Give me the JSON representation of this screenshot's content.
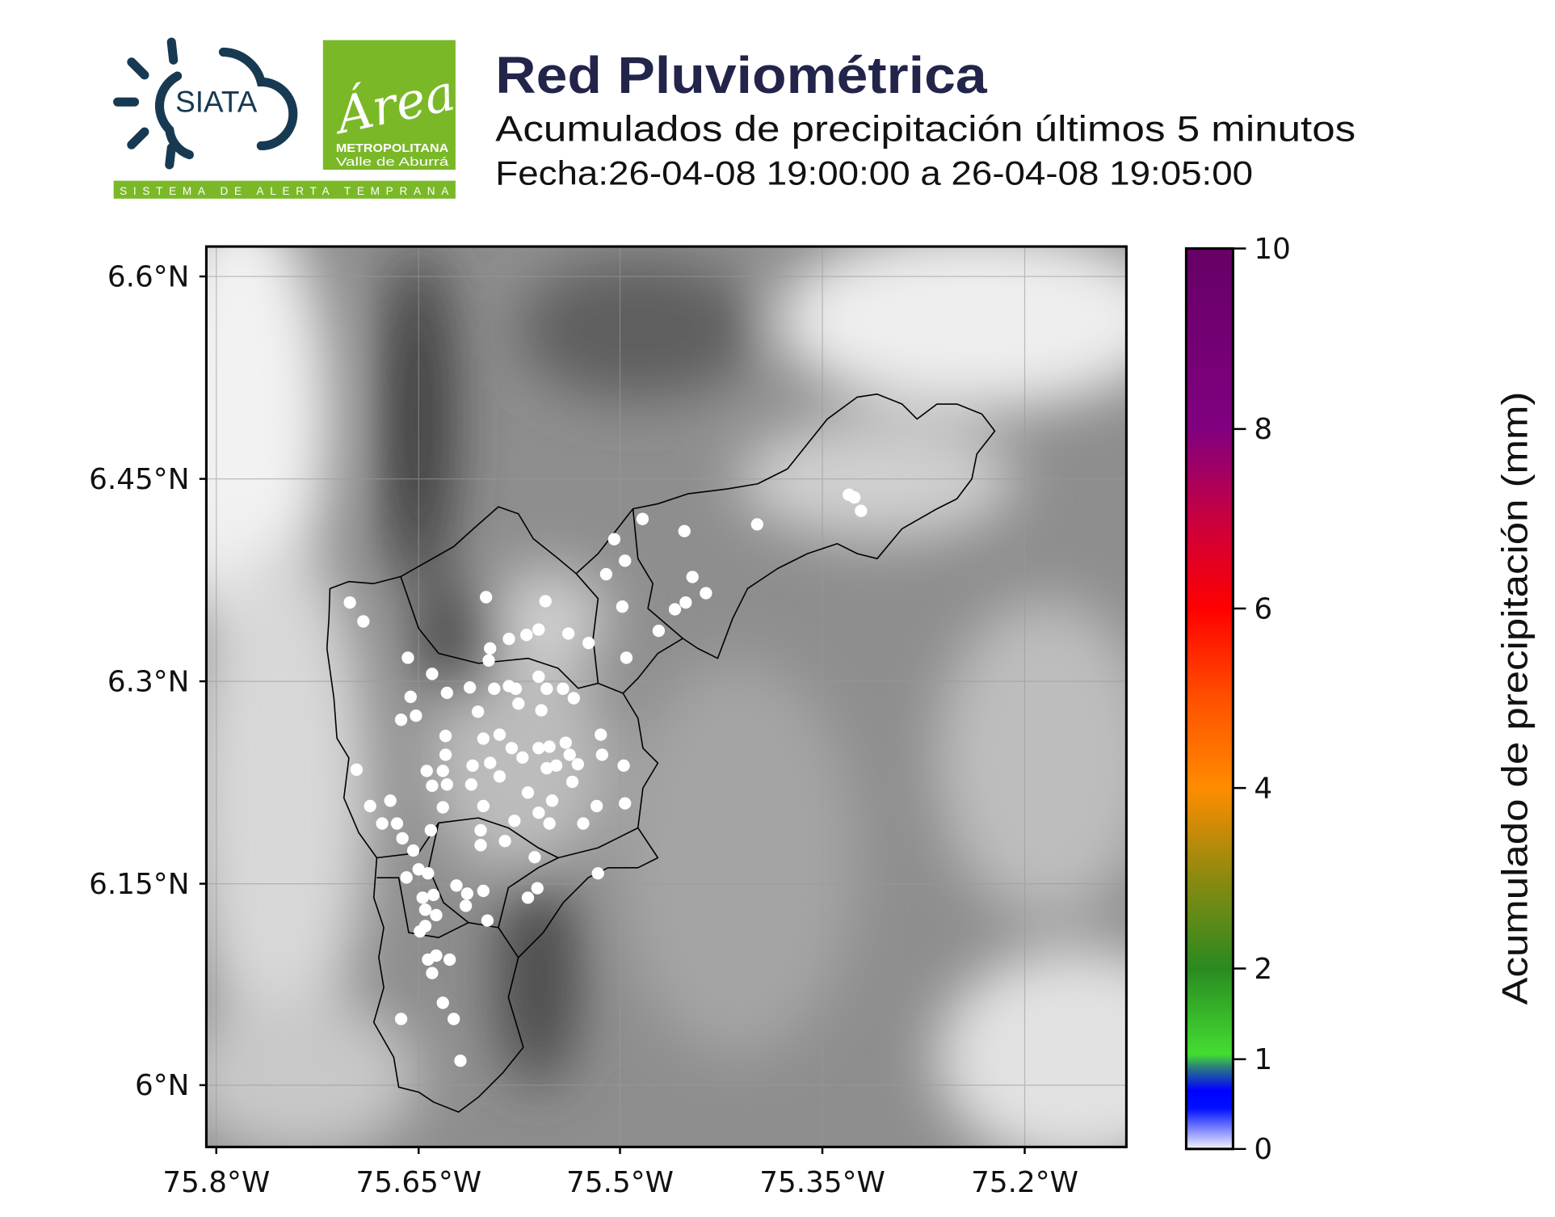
{
  "header": {
    "title": "Red Pluviométrica",
    "subtitle": "Acumulados de precipitación últimos 5 minutos",
    "date_range": "Fecha:26-04-08 19:00:00 a 26-04-08 19:05:00",
    "title_color": "#22244a"
  },
  "logos": {
    "siata": "SIATA",
    "siata_tagline": "SISTEMA DE ALERTA TEMPRANA",
    "area_script": "Área",
    "area_line1": "METROPOLITANA",
    "area_line2": "Valle de Aburrá",
    "siata_color": "#173a52",
    "area_color": "#7ab828"
  },
  "map": {
    "lat_ticks": [
      "6.6°N",
      "6.45°N",
      "6.3°N",
      "6.15°N",
      "6°N"
    ],
    "lon_ticks": [
      "75.8°W",
      "75.65°W",
      "75.5°W",
      "75.35°W",
      "75.2°W"
    ],
    "extent": {
      "lon": [
        -75.808,
        -75.124
      ],
      "lat": [
        5.954,
        6.622
      ]
    },
    "basemap": "grayscale elevation relief",
    "station_color": "#ffffff",
    "stations": [
      [
        -75.701,
        6.358
      ],
      [
        -75.691,
        6.344
      ],
      [
        -75.6,
        6.362
      ],
      [
        -75.556,
        6.359
      ],
      [
        -75.505,
        6.405
      ],
      [
        -75.484,
        6.42
      ],
      [
        -75.453,
        6.411
      ],
      [
        -75.399,
        6.416
      ],
      [
        -75.331,
        6.438
      ],
      [
        -75.327,
        6.436
      ],
      [
        -75.322,
        6.426
      ],
      [
        -75.511,
        6.379
      ],
      [
        -75.497,
        6.389
      ],
      [
        -75.499,
        6.355
      ],
      [
        -75.447,
        6.377
      ],
      [
        -75.437,
        6.365
      ],
      [
        -75.452,
        6.358
      ],
      [
        -75.46,
        6.353
      ],
      [
        -75.472,
        6.337
      ],
      [
        -75.496,
        6.317
      ],
      [
        -75.524,
        6.328
      ],
      [
        -75.539,
        6.335
      ],
      [
        -75.561,
        6.338
      ],
      [
        -75.57,
        6.334
      ],
      [
        -75.583,
        6.331
      ],
      [
        -75.597,
        6.324
      ],
      [
        -75.598,
        6.315
      ],
      [
        -75.658,
        6.317
      ],
      [
        -75.64,
        6.305
      ],
      [
        -75.629,
        6.291
      ],
      [
        -75.612,
        6.295
      ],
      [
        -75.594,
        6.294
      ],
      [
        -75.583,
        6.296
      ],
      [
        -75.578,
        6.294
      ],
      [
        -75.561,
        6.303
      ],
      [
        -75.555,
        6.294
      ],
      [
        -75.543,
        6.294
      ],
      [
        -75.535,
        6.287
      ],
      [
        -75.656,
        6.288
      ],
      [
        -75.652,
        6.274
      ],
      [
        -75.663,
        6.271
      ],
      [
        -75.606,
        6.277
      ],
      [
        -75.576,
        6.283
      ],
      [
        -75.559,
        6.278
      ],
      [
        -75.63,
        6.259
      ],
      [
        -75.602,
        6.257
      ],
      [
        -75.59,
        6.26
      ],
      [
        -75.581,
        6.25
      ],
      [
        -75.561,
        6.25
      ],
      [
        -75.553,
        6.251
      ],
      [
        -75.541,
        6.254
      ],
      [
        -75.538,
        6.245
      ],
      [
        -75.515,
        6.26
      ],
      [
        -75.63,
        6.245
      ],
      [
        -75.644,
        6.233
      ],
      [
        -75.632,
        6.233
      ],
      [
        -75.61,
        6.237
      ],
      [
        -75.597,
        6.239
      ],
      [
        -75.573,
        6.243
      ],
      [
        -75.555,
        6.235
      ],
      [
        -75.548,
        6.237
      ],
      [
        -75.532,
        6.238
      ],
      [
        -75.514,
        6.245
      ],
      [
        -75.498,
        6.237
      ],
      [
        -75.696,
        6.234
      ],
      [
        -75.64,
        6.222
      ],
      [
        -75.629,
        6.223
      ],
      [
        -75.611,
        6.223
      ],
      [
        -75.59,
        6.229
      ],
      [
        -75.569,
        6.217
      ],
      [
        -75.551,
        6.211
      ],
      [
        -75.536,
        6.225
      ],
      [
        -75.518,
        6.207
      ],
      [
        -75.497,
        6.209
      ],
      [
        -75.686,
        6.207
      ],
      [
        -75.671,
        6.211
      ],
      [
        -75.677,
        6.194
      ],
      [
        -75.666,
        6.194
      ],
      [
        -75.632,
        6.206
      ],
      [
        -75.602,
        6.207
      ],
      [
        -75.579,
        6.196
      ],
      [
        -75.561,
        6.202
      ],
      [
        -75.553,
        6.194
      ],
      [
        -75.528,
        6.194
      ],
      [
        -75.641,
        6.189
      ],
      [
        -75.662,
        6.183
      ],
      [
        -75.604,
        6.189
      ],
      [
        -75.604,
        6.178
      ],
      [
        -75.586,
        6.181
      ],
      [
        -75.654,
        6.174
      ],
      [
        -75.564,
        6.169
      ],
      [
        -75.517,
        6.157
      ],
      [
        -75.65,
        6.16
      ],
      [
        -75.643,
        6.157
      ],
      [
        -75.659,
        6.154
      ],
      [
        -75.622,
        6.148
      ],
      [
        -75.602,
        6.144
      ],
      [
        -75.562,
        6.146
      ],
      [
        -75.569,
        6.139
      ],
      [
        -75.647,
        6.139
      ],
      [
        -75.639,
        6.141
      ],
      [
        -75.614,
        6.142
      ],
      [
        -75.615,
        6.133
      ],
      [
        -75.645,
        6.13
      ],
      [
        -75.637,
        6.126
      ],
      [
        -75.599,
        6.122
      ],
      [
        -75.645,
        6.118
      ],
      [
        -75.649,
        6.114
      ],
      [
        -75.643,
        6.093
      ],
      [
        -75.637,
        6.096
      ],
      [
        -75.627,
        6.093
      ],
      [
        -75.64,
        6.083
      ],
      [
        -75.632,
        6.061
      ],
      [
        -75.663,
        6.049
      ],
      [
        -75.624,
        6.049
      ],
      [
        -75.619,
        6.018
      ]
    ]
  },
  "colorbar": {
    "label": "Acumulado de precipitación (mm)",
    "ticks": [
      "0",
      "1",
      "2",
      "4",
      "6",
      "8",
      "10"
    ],
    "range": [
      0,
      10
    ],
    "colors": {
      "0": "#f4f4ff",
      "0.5": "#0000ff",
      "1": "#44dd33",
      "2": "#2a8a20",
      "3": "#8a8a10",
      "4": "#ff8c00",
      "6": "#ff0000",
      "8": "#800080",
      "10": "#660066"
    }
  }
}
